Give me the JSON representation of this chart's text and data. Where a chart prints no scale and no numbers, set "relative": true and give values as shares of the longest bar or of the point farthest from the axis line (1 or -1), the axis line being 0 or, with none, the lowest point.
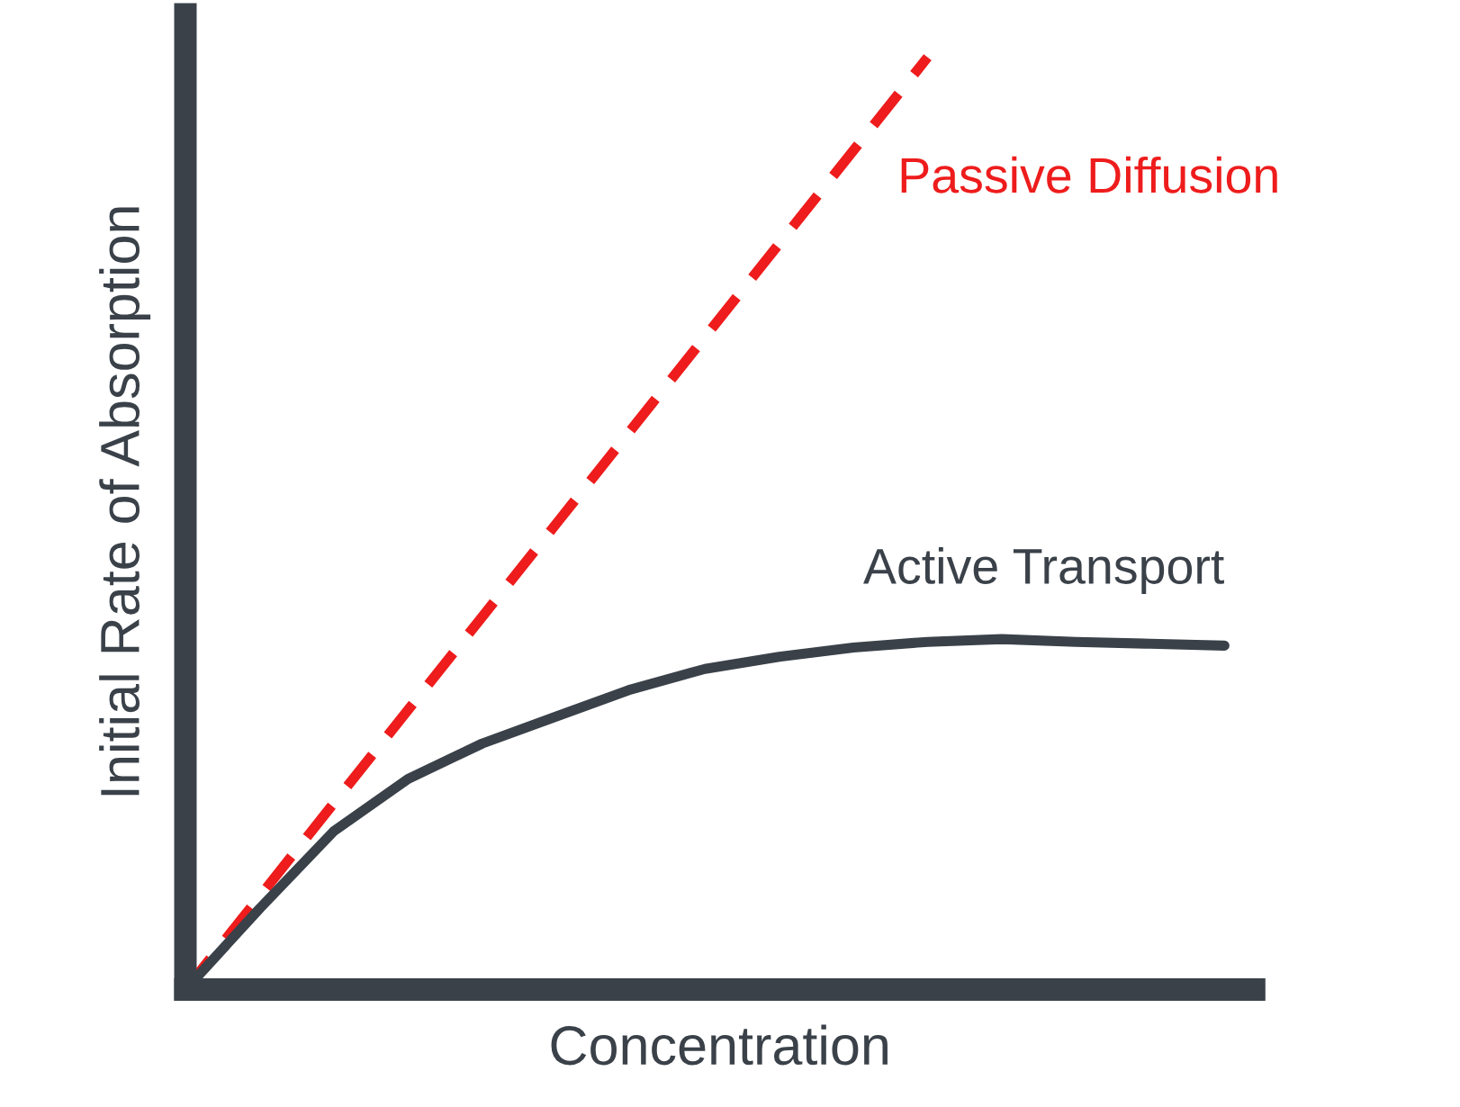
{
  "chart_data": {
    "type": "line",
    "relative": true,
    "xlabel": "Concentration",
    "ylabel": "Initial Rate of Absorption",
    "legend": false,
    "categories": [
      null,
      null,
      null,
      null,
      null,
      null,
      null,
      null,
      null,
      null,
      null,
      null,
      null,
      null,
      null
    ],
    "series": [
      {
        "name": "Passive Diffusion",
        "color": "#ee1c1c",
        "line_style": "dashed",
        "values": [
          0,
          0.1,
          0.2,
          0.3,
          0.4,
          0.5,
          0.6,
          0.7,
          0.8,
          0.9,
          1,
          null,
          null,
          null,
          null
        ]
      },
      {
        "name": "Active Transport",
        "color": "#3a4149",
        "line_style": "solid",
        "values": [
          0,
          0.087,
          0.17,
          0.226,
          0.264,
          0.293,
          0.322,
          0.344,
          0.357,
          0.367,
          0.373,
          0.376,
          0.373,
          0.371,
          0.369
        ]
      }
    ]
  }
}
